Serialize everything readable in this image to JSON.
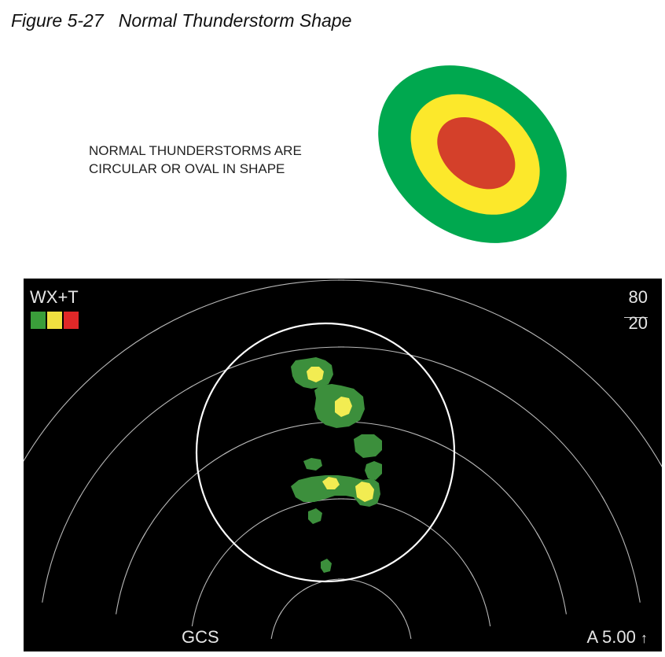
{
  "figure": {
    "label": "Figure 5-27",
    "title": "Normal Thunderstorm Shape",
    "caption_lines": [
      "NORMAL THUNDERSTORMS ARE",
      "CIRCULAR OR OVAL IN SHAPE"
    ]
  },
  "oval_colors": {
    "outer": "#00a84f",
    "middle": "#fce82b",
    "inner": "#d4402a"
  },
  "radar": {
    "mode": "WX+T",
    "range_top": "80",
    "range_bottom": "20",
    "bottom_left": "GCS",
    "bottom_right": "A 5.00",
    "arrow_glyph": "↑",
    "legend_colors": [
      "#3a9e3a",
      "#f0e040",
      "#e02828"
    ],
    "weather_colors": {
      "green": "#3c8f3c",
      "yellow": "#f2ec52"
    }
  }
}
